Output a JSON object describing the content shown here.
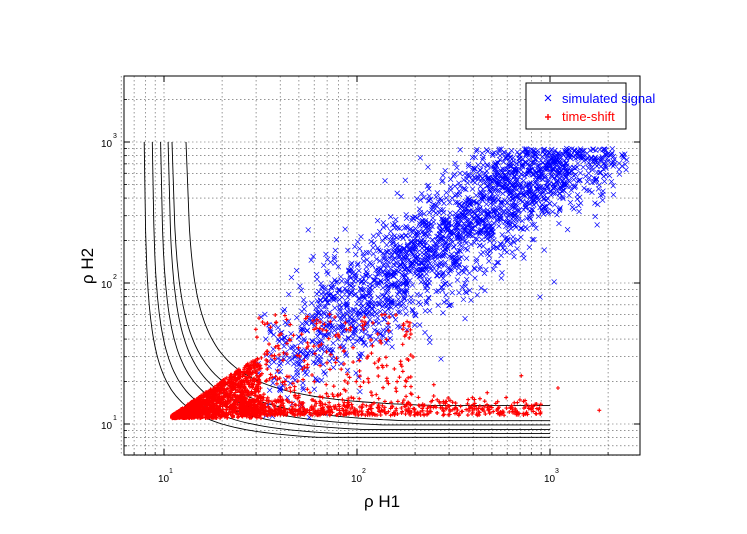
{
  "chart_data": {
    "type": "scatter",
    "xscale": "log",
    "yscale": "log",
    "xlim": [
      6,
      2800
    ],
    "ylim": [
      6,
      2800
    ],
    "grid": true,
    "legend_position": "top-right",
    "xlabel": "ρ H1",
    "ylabel": "ρ H2",
    "x_ticks": [
      10,
      100,
      1000
    ],
    "y_ticks": [
      10,
      100,
      1000
    ],
    "x_tick_labels": [
      {
        "base": "10",
        "exp": "1"
      },
      {
        "base": "10",
        "exp": "2"
      },
      {
        "base": "10",
        "exp": "3"
      }
    ],
    "y_tick_labels": [
      {
        "base": "10",
        "exp": "1"
      },
      {
        "base": "10",
        "exp": "2"
      },
      {
        "base": "10",
        "exp": "3"
      }
    ],
    "series": [
      {
        "name": "simulated signal",
        "marker": "x",
        "color": "#0000ff",
        "approx_count": 3000,
        "cloud": {
          "x_range": [
            30,
            2500
          ],
          "y_over_x_median": 0.75,
          "log_spread": 0.22
        }
      },
      {
        "name": "time-shift",
        "marker": "+",
        "color": "#ff0000",
        "approx_count": 2500,
        "cloud": {
          "x_range": [
            11,
            1000
          ],
          "y_range": [
            11,
            60
          ]
        },
        "outliers": [
          [
            1100,
            18
          ],
          [
            1800,
            12.5
          ],
          [
            710,
            22
          ],
          [
            180,
            20
          ],
          [
            250,
            19
          ]
        ]
      }
    ],
    "contours": [
      {
        "x_min": 7.9,
        "y_min": 7.5,
        "x_max": 1000,
        "y_max": 1000,
        "k": 5.5
      },
      {
        "x_min": 8.7,
        "y_min": 8.0,
        "x_max": 1000,
        "y_max": 1000,
        "k": 6.3
      },
      {
        "x_min": 9.6,
        "y_min": 8.6,
        "x_max": 1000,
        "y_max": 1000,
        "k": 7.3
      },
      {
        "x_min": 10.5,
        "y_min": 9.3,
        "x_max": 1000,
        "y_max": 1000,
        "k": 8.3
      },
      {
        "x_min": 11.0,
        "y_min": 10.0,
        "x_max": 1000,
        "y_max": 1000,
        "k": 9.6
      },
      {
        "x_min": 13.0,
        "y_min": 13.0,
        "x_max": 1000,
        "y_max": 1000,
        "k": 11.3
      }
    ]
  }
}
